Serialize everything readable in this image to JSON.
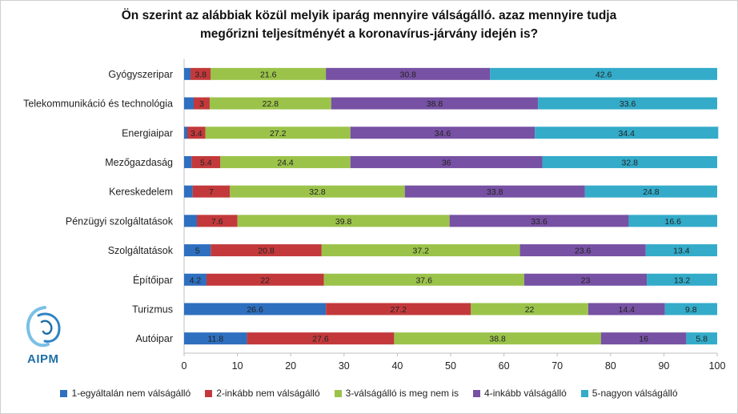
{
  "title_line1": "Ön szerint az alábbiak közül melyik iparág mennyire válságálló. azaz mennyire tudja",
  "title_line2": "megőrizni teljesítményét a koronavírus-járvány idején is?",
  "logo_text": "AIPM",
  "logo_icon": "aipm-logo-icon",
  "colors": [
    "#2e6fbf",
    "#c3393b",
    "#9bc34a",
    "#7751a3",
    "#33abc9"
  ],
  "chart_data": {
    "type": "bar",
    "orientation": "horizontal",
    "stacked": true,
    "title": "Ön szerint az alábbiak közül melyik iparág mennyire válságálló. azaz mennyire tudja megőrizni teljesítményét a koronavírus-járvány idején is?",
    "categories": [
      "Gyógyszeripar",
      "Telekommunikáció és technológia",
      "Energiaipar",
      "Mezőgazdaság",
      "Kereskedelem",
      "Pénzügyi szolgáltatások",
      "Szolgáltatások",
      "Építőipar",
      "Turizmus",
      "Autóipar"
    ],
    "series": [
      {
        "name": "1-egyáltalán nem válságálló",
        "values": [
          1.2,
          1.8,
          0.6,
          1.4,
          1.6,
          2.4,
          5,
          4.2,
          26.6,
          11.8
        ]
      },
      {
        "name": "2-inkább nem válságálló",
        "values": [
          3.8,
          3,
          3.4,
          5.4,
          7,
          7.6,
          20.8,
          22,
          27.2,
          27.6
        ]
      },
      {
        "name": "3-válságálló is meg nem is",
        "values": [
          21.6,
          22.8,
          27.2,
          24.4,
          32.8,
          39.8,
          37.2,
          37.6,
          22,
          38.8
        ]
      },
      {
        "name": "4-inkább válságálló",
        "values": [
          30.8,
          38.8,
          34.6,
          36,
          33.8,
          33.6,
          23.6,
          23,
          14.4,
          16
        ]
      },
      {
        "name": "5-nagyon válságálló",
        "values": [
          42.6,
          33.6,
          34.4,
          32.8,
          24.8,
          16.6,
          13.4,
          13.2,
          9.8,
          5.8
        ]
      }
    ],
    "labeled": [
      [
        false,
        true,
        true,
        true,
        true
      ],
      [
        false,
        true,
        true,
        true,
        true
      ],
      [
        false,
        true,
        true,
        true,
        true
      ],
      [
        false,
        true,
        true,
        true,
        true
      ],
      [
        false,
        true,
        true,
        true,
        true
      ],
      [
        false,
        true,
        true,
        true,
        true
      ],
      [
        true,
        true,
        true,
        true,
        true
      ],
      [
        true,
        true,
        true,
        true,
        true
      ],
      [
        true,
        true,
        true,
        true,
        true
      ],
      [
        true,
        true,
        true,
        true,
        true
      ]
    ],
    "xlim": [
      0,
      100
    ],
    "xticks": [
      0,
      10,
      20,
      30,
      40,
      50,
      60,
      70,
      80,
      90,
      100
    ],
    "grid": false,
    "legend": "bottom"
  }
}
